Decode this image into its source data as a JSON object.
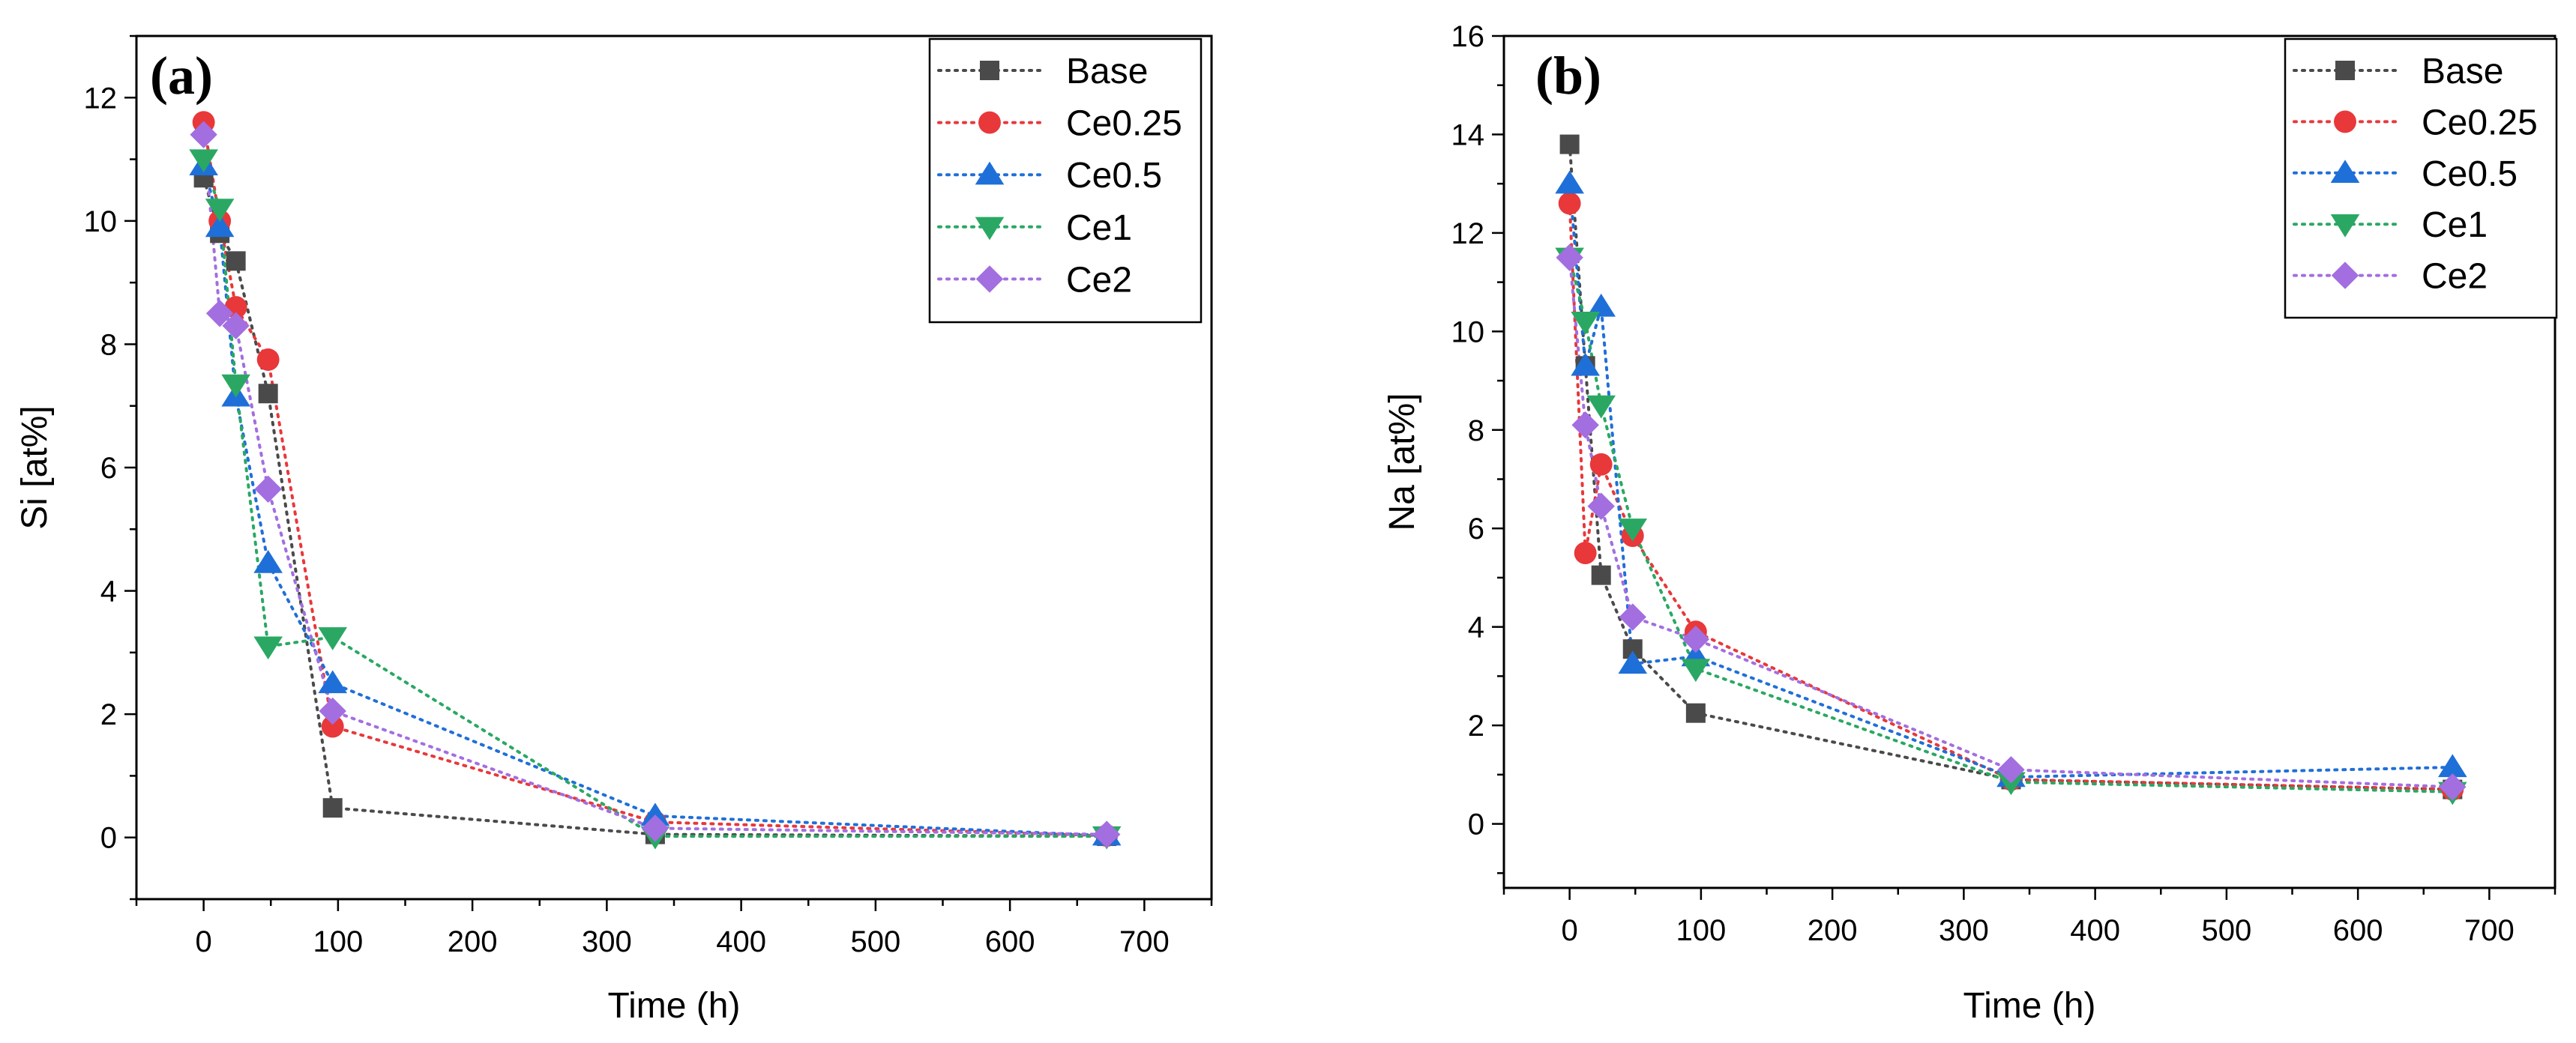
{
  "chart_data": [
    {
      "type": "line",
      "panel_label": "(a)",
      "xlabel": "Time (h)",
      "ylabel": "Si [at%]",
      "xlim": [
        -50,
        750
      ],
      "ylim": [
        -1,
        13
      ],
      "xticks": [
        0,
        100,
        200,
        300,
        400,
        500,
        600,
        700
      ],
      "yticks": [
        0,
        2,
        4,
        6,
        8,
        10,
        12
      ],
      "legend_position": "top-right",
      "series": [
        {
          "name": "Base",
          "color": "#4a4a4a",
          "marker": "square",
          "x": [
            0,
            12,
            24,
            48,
            96,
            336,
            672
          ],
          "y": [
            10.7,
            9.8,
            9.35,
            7.2,
            0.48,
            0.05,
            0.02
          ]
        },
        {
          "name": "Ce0.25",
          "color": "#e8383a",
          "marker": "circle",
          "x": [
            0,
            12,
            24,
            48,
            96,
            336,
            672
          ],
          "y": [
            11.6,
            10.0,
            8.6,
            7.75,
            1.8,
            0.25,
            0.03
          ]
        },
        {
          "name": "Ce0.5",
          "color": "#1f6fd8",
          "marker": "triangle-up",
          "x": [
            0,
            12,
            24,
            48,
            96,
            336,
            672
          ],
          "y": [
            10.9,
            9.9,
            7.15,
            4.45,
            2.5,
            0.35,
            0.03
          ]
        },
        {
          "name": "Ce1",
          "color": "#2aa863",
          "marker": "triangle-down",
          "x": [
            0,
            12,
            24,
            48,
            96,
            336,
            672
          ],
          "y": [
            11.0,
            10.2,
            7.35,
            3.1,
            3.25,
            0.02,
            0.02
          ]
        },
        {
          "name": "Ce2",
          "color": "#a36ee0",
          "marker": "diamond",
          "x": [
            0,
            12,
            24,
            48,
            96,
            336,
            672
          ],
          "y": [
            11.4,
            8.5,
            8.3,
            5.65,
            2.05,
            0.15,
            0.05
          ]
        }
      ]
    },
    {
      "type": "line",
      "panel_label": "(b)",
      "xlabel": "Time (h)",
      "ylabel": "Na [at%]",
      "xlim": [
        -50,
        750
      ],
      "ylim": [
        -1.3,
        16
      ],
      "xticks": [
        0,
        100,
        200,
        300,
        400,
        500,
        600,
        700
      ],
      "yticks": [
        0,
        2,
        4,
        6,
        8,
        10,
        12,
        14,
        16
      ],
      "legend_position": "top-right",
      "series": [
        {
          "name": "Base",
          "color": "#4a4a4a",
          "marker": "square",
          "x": [
            0,
            12,
            24,
            48,
            96,
            336,
            672
          ],
          "y": [
            13.8,
            9.3,
            5.05,
            3.55,
            2.25,
            0.9,
            0.7
          ]
        },
        {
          "name": "Ce0.25",
          "color": "#e8383a",
          "marker": "circle",
          "x": [
            0,
            12,
            24,
            48,
            96,
            336,
            672
          ],
          "y": [
            12.6,
            5.5,
            7.3,
            5.85,
            3.9,
            0.9,
            0.7
          ]
        },
        {
          "name": "Ce0.5",
          "color": "#1f6fd8",
          "marker": "triangle-up",
          "x": [
            0,
            12,
            24,
            48,
            96,
            336,
            672
          ],
          "y": [
            13.0,
            9.3,
            10.5,
            3.25,
            3.4,
            0.95,
            1.15
          ]
        },
        {
          "name": "Ce1",
          "color": "#2aa863",
          "marker": "triangle-down",
          "x": [
            0,
            12,
            24,
            48,
            96,
            336,
            672
          ],
          "y": [
            11.5,
            10.2,
            8.5,
            6.0,
            3.15,
            0.85,
            0.65
          ]
        },
        {
          "name": "Ce2",
          "color": "#a36ee0",
          "marker": "diamond",
          "x": [
            0,
            12,
            24,
            48,
            96,
            336,
            672
          ],
          "y": [
            11.5,
            8.1,
            6.45,
            4.2,
            3.75,
            1.1,
            0.75
          ]
        }
      ]
    }
  ]
}
